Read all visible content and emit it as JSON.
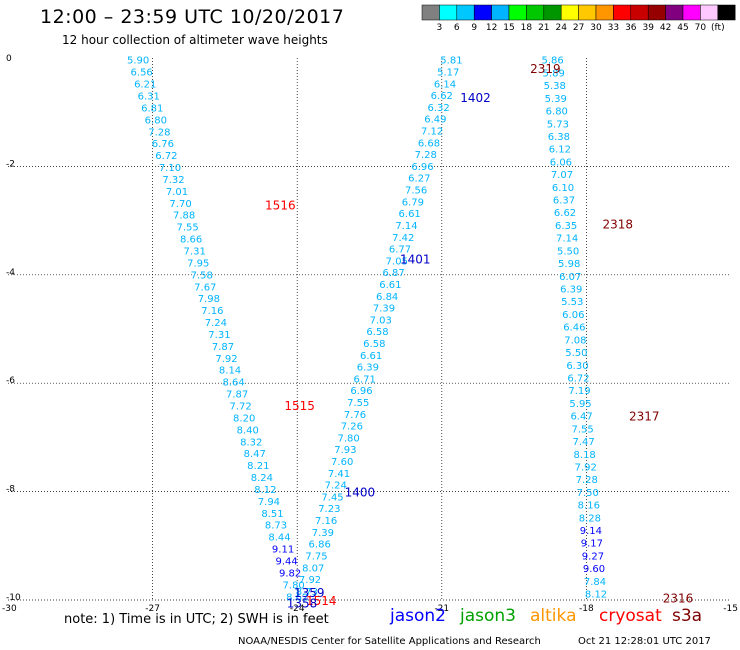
{
  "header": {
    "title": "12:00 – 23:59 UTC 10/20/2017",
    "subtitle": "12 hour collection of altimeter wave heights"
  },
  "colorbar": {
    "swatches": [
      "#808080",
      "#00ffff",
      "#00c8ff",
      "#0000ff",
      "#00b4ff",
      "#00ff00",
      "#00c800",
      "#009600",
      "#ffff00",
      "#ffc800",
      "#ff9600",
      "#ff0000",
      "#c80000",
      "#960000",
      "#800080",
      "#ff00ff",
      "#ffc8ff",
      "#000000"
    ],
    "labels": [
      "3",
      "6",
      "9",
      "12",
      "15",
      "18",
      "21",
      "24",
      "27",
      "30",
      "33",
      "36",
      "39",
      "42",
      "45",
      "70",
      "(ft)"
    ]
  },
  "axes": {
    "x_ticks": [
      "-30",
      "-27",
      "-24",
      "-21",
      "-18",
      "-15"
    ],
    "y_ticks": [
      "0",
      "-2",
      "-4",
      "-6",
      "-8",
      "-10"
    ]
  },
  "tracks": [
    {
      "start": [
        -27.3,
        -0.05
      ],
      "end": [
        -24.0,
        -9.95
      ],
      "color": "#00b4ff",
      "values": [
        "5.90",
        "6.56",
        "6.21",
        "6.31",
        "6.81",
        "6.80",
        "7.28",
        "6.76",
        "6.72",
        "7.10",
        "7.32",
        "7.01",
        "7.70",
        "7.88",
        "7.55",
        "8.66",
        "7.31",
        "7.95",
        "7.58",
        "7.67",
        "7.98",
        "7.16",
        "7.24",
        "7.31",
        "7.87",
        "7.92",
        "8.14",
        "8.64",
        "7.87",
        "7.72",
        "8.20",
        "8.40",
        "8.32",
        "8.47",
        "8.21",
        "8.24",
        "8.12",
        "7.94",
        "8.51",
        "8.73",
        "8.44",
        "9.11",
        "9.44",
        "9.82",
        "7.80",
        "8.62"
      ]
    },
    {
      "start": [
        -20.8,
        -0.05
      ],
      "end": [
        -23.8,
        -9.85
      ],
      "color": "#00b4ff",
      "values": [
        "5.81",
        "5.17",
        "6.14",
        "6.62",
        "6.32",
        "6.49",
        "7.12",
        "6.68",
        "7.28",
        "6.96",
        "6.27",
        "7.56",
        "6.79",
        "6.61",
        "7.14",
        "7.42",
        "6.77",
        "7.05",
        "6.87",
        "6.61",
        "6.84",
        "7.39",
        "7.03",
        "6.58",
        "6.58",
        "6.61",
        "6.39",
        "6.71",
        "6.96",
        "7.55",
        "7.76",
        "7.26",
        "7.80",
        "7.93",
        "7.60",
        "7.41",
        "7.24",
        "7.45",
        "7.23",
        "7.16",
        "7.39",
        "6.86",
        "7.75",
        "8.07",
        "7.92",
        "8.73"
      ]
    },
    {
      "start": [
        -18.7,
        -0.05
      ],
      "end": [
        -17.8,
        -9.9
      ],
      "color": "#00b4ff",
      "values": [
        "5.86",
        "5.89",
        "5.38",
        "5.39",
        "6.80",
        "5.73",
        "6.38",
        "6.12",
        "6.06",
        "7.07",
        "6.10",
        "6.37",
        "6.62",
        "6.35",
        "7.14",
        "5.50",
        "5.98",
        "6.07",
        "6.39",
        "5.53",
        "6.06",
        "6.46",
        "7.08",
        "5.50",
        "6.30",
        "6.72",
        "7.19",
        "5.95",
        "6.47",
        "7.55",
        "7.47",
        "8.18",
        "7.92",
        "7.28",
        "7.50",
        "8.16",
        "8.28",
        "9.14",
        "9.17",
        "9.27",
        "9.60",
        "7.84",
        "8.12"
      ]
    }
  ],
  "pass_labels": [
    {
      "text": "2319",
      "lon": -18.85,
      "lat": -0.18,
      "color": "#800000"
    },
    {
      "text": "1402",
      "lon": -20.3,
      "lat": -0.72,
      "color": "#0000c8"
    },
    {
      "text": "1516",
      "lon": -24.35,
      "lat": -2.7,
      "color": "#ff0000"
    },
    {
      "text": "2318",
      "lon": -17.35,
      "lat": -3.05,
      "color": "#800000"
    },
    {
      "text": "1401",
      "lon": -21.55,
      "lat": -3.7,
      "color": "#0000c8"
    },
    {
      "text": "1515",
      "lon": -23.95,
      "lat": -6.4,
      "color": "#ff0000"
    },
    {
      "text": "2317",
      "lon": -16.8,
      "lat": -6.6,
      "color": "#800000"
    },
    {
      "text": "1400",
      "lon": -22.7,
      "lat": -8.0,
      "color": "#0000c8"
    },
    {
      "text": "1359",
      "lon": -23.75,
      "lat": -9.85,
      "color": "#0000c8"
    },
    {
      "text": "1514",
      "lon": -23.5,
      "lat": -10.0,
      "color": "#ff0000"
    },
    {
      "text": "1358",
      "lon": -23.9,
      "lat": -10.05,
      "color": "#0000c8"
    },
    {
      "text": "2316",
      "lon": -16.1,
      "lat": -9.95,
      "color": "#800000"
    }
  ],
  "note": "note: 1) Time is in UTC; 2) SWH is in feet",
  "satellites": [
    {
      "name": "jason2",
      "color": "#0000ff"
    },
    {
      "name": "jason3",
      "color": "#00a000"
    },
    {
      "name": "altika",
      "color": "#ff9600"
    },
    {
      "name": "cryosat",
      "color": "#ff0000"
    },
    {
      "name": "s3a",
      "color": "#800000"
    }
  ],
  "footer": {
    "credit": "NOAA/NESDIS Center for Satellite Applications and Research",
    "timestamp": "Oct 21 12:28:01 UTC 2017"
  }
}
